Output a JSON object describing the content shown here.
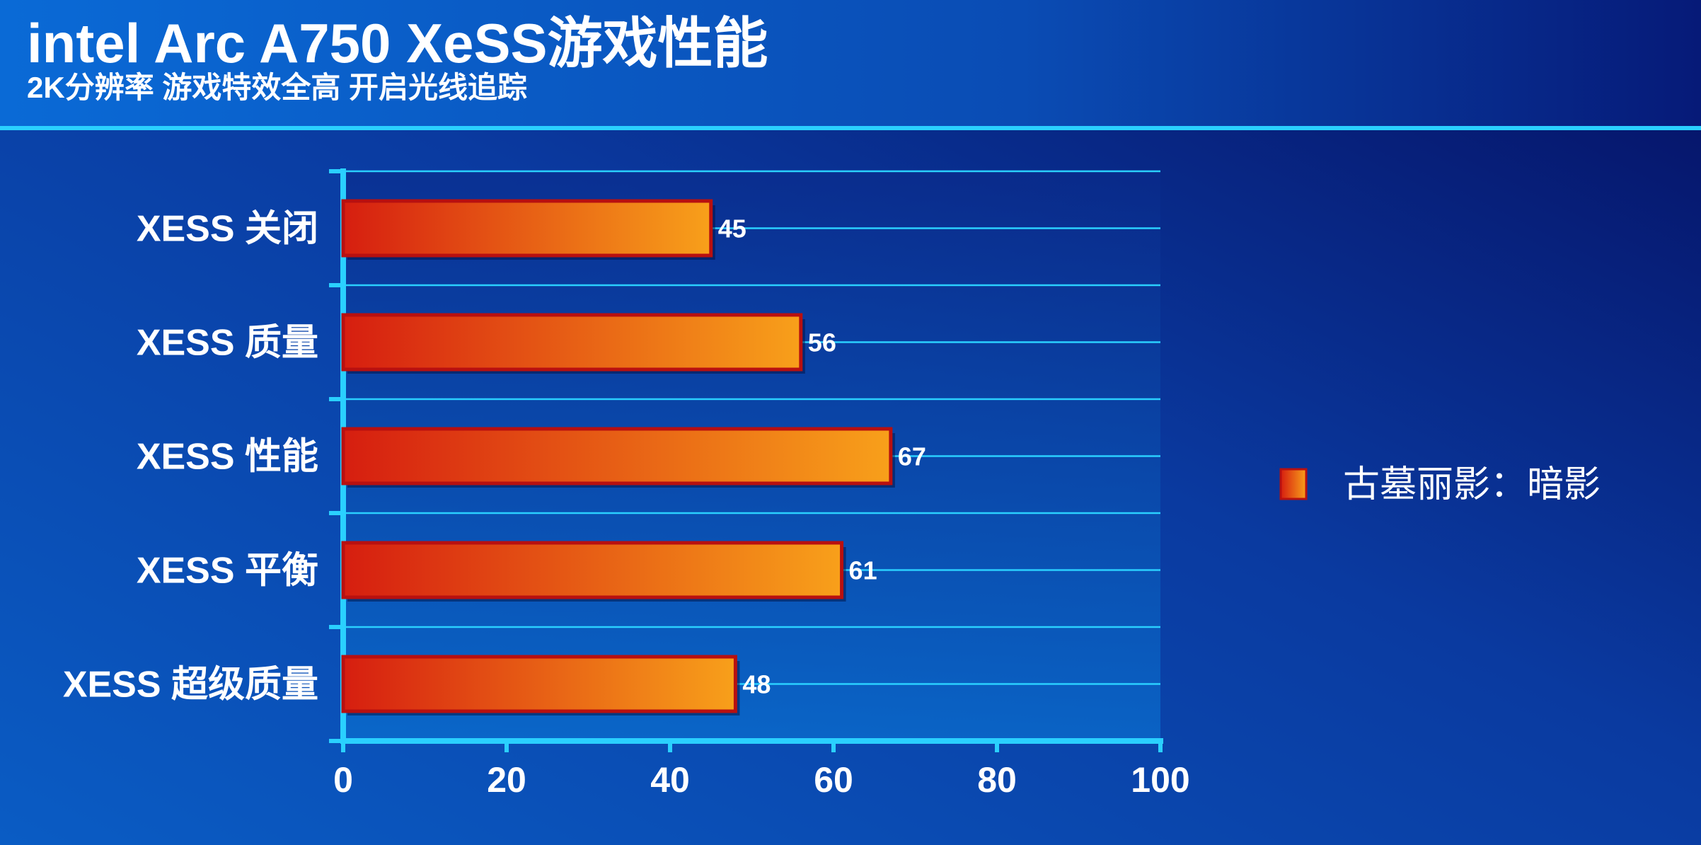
{
  "chart_data": {
    "type": "barh",
    "title": "intel Arc A750 XeSS游戏性能",
    "subtitle": "2K分辨率 游戏特效全高 开启光线追踪",
    "categories": [
      "XESS 关闭",
      "XESS 质量",
      "XESS 性能",
      "XESS 平衡",
      "XESS 超级质量"
    ],
    "series": [
      {
        "name": "古墓丽影：暗影",
        "color": "#f8a01a",
        "values": [
          45,
          56,
          67,
          61,
          48
        ]
      }
    ],
    "xlim": [
      0,
      100
    ],
    "xticks": [
      0,
      20,
      40,
      60,
      80,
      100
    ],
    "legend": "right"
  }
}
